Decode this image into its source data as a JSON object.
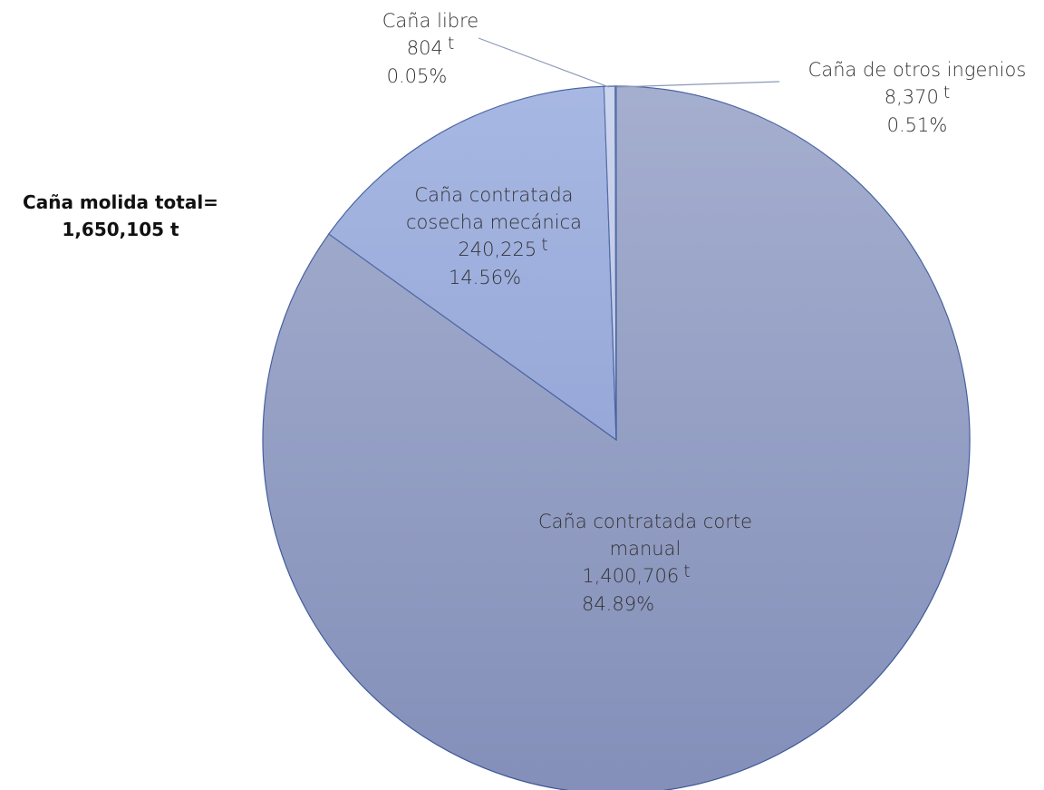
{
  "chart_data": {
    "type": "pie",
    "title": [
      "Caña molida total=",
      "1,650,105 t"
    ],
    "categories": [
      "Caña contratada corte manual",
      "Caña contratada cosecha mecánica",
      "Caña de otros ingenios",
      "Caña libre"
    ],
    "values": [
      1400706,
      240225,
      8370,
      804
    ],
    "value_labels": [
      "1,400,706",
      "240,225",
      "8,370",
      "804"
    ],
    "unit": "t",
    "percentages": [
      84.89,
      14.56,
      0.51,
      0.05
    ],
    "percentage_labels": [
      "84.89%",
      "14.56%",
      "0.51%",
      "0.05%"
    ],
    "colors": [
      "#95a0c6",
      "#98abde",
      "#c3cdeb",
      "#d6ddf1"
    ]
  }
}
